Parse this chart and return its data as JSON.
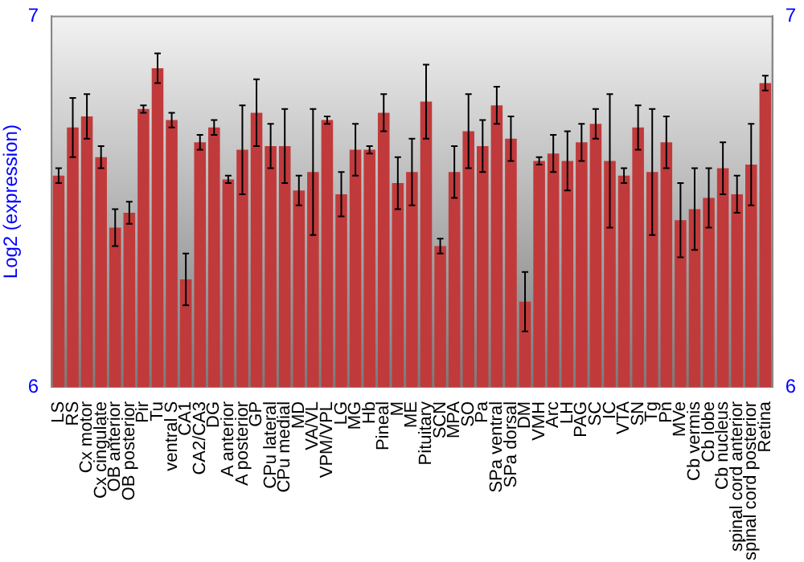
{
  "chart_data": {
    "type": "bar",
    "ylabel": "Log2 (expression)",
    "categories": [
      "LS",
      "RS",
      "Cx motor",
      "Cx cingulate",
      "OB anterior",
      "OB posterior",
      "Pir",
      "Tu",
      "ventral S",
      "CA1",
      "CA2/CA3",
      "DG",
      "A anterior",
      "A posterior",
      "GP",
      "CPu lateral",
      "CPu medial",
      "MD",
      "VA/VL",
      "VPM/VPL",
      "LG",
      "MG",
      "Hb",
      "Pineal",
      "M",
      "ME",
      "Pituitary",
      "SCN",
      "MPA",
      "SO",
      "Pa",
      "SPa ventral",
      "SPa dorsal",
      "DM",
      "VMH",
      "Arc",
      "LH",
      "PAG",
      "SC",
      "IC",
      "VTA",
      "SN",
      "Tg",
      "Pn",
      "MVe",
      "Cb vermis",
      "Cb lobe",
      "Cb nucleus",
      "spinal cord anterior",
      "spinal cord posterior",
      "Retina"
    ],
    "values": [
      6.57,
      6.7,
      6.73,
      6.62,
      6.43,
      6.47,
      6.75,
      6.86,
      6.72,
      6.29,
      6.66,
      6.7,
      6.56,
      6.64,
      6.74,
      6.65,
      6.65,
      6.53,
      6.58,
      6.72,
      6.52,
      6.64,
      6.64,
      6.74,
      6.55,
      6.58,
      6.77,
      6.38,
      6.58,
      6.69,
      6.65,
      6.76,
      6.67,
      6.23,
      6.61,
      6.63,
      6.61,
      6.66,
      6.71,
      6.61,
      6.57,
      6.7,
      6.58,
      6.66,
      6.45,
      6.48,
      6.51,
      6.59,
      6.52,
      6.6,
      6.82
    ],
    "errors": [
      0.02,
      0.08,
      0.06,
      0.03,
      0.05,
      0.03,
      0.01,
      0.04,
      0.02,
      0.07,
      0.02,
      0.02,
      0.01,
      0.12,
      0.09,
      0.06,
      0.1,
      0.04,
      0.17,
      0.01,
      0.06,
      0.07,
      0.01,
      0.05,
      0.07,
      0.09,
      0.1,
      0.02,
      0.07,
      0.1,
      0.07,
      0.05,
      0.06,
      0.08,
      0.01,
      0.05,
      0.08,
      0.05,
      0.04,
      0.18,
      0.02,
      0.06,
      0.17,
      0.07,
      0.1,
      0.11,
      0.08,
      0.07,
      0.05,
      0.11,
      0.02
    ],
    "color": "#c03a3c",
    "ylim": [
      6,
      7
    ],
    "yticks": [
      6,
      7
    ],
    "y2lim": [
      6,
      7
    ],
    "y2ticks": [
      6,
      7
    ],
    "grid": false,
    "legend": false
  }
}
